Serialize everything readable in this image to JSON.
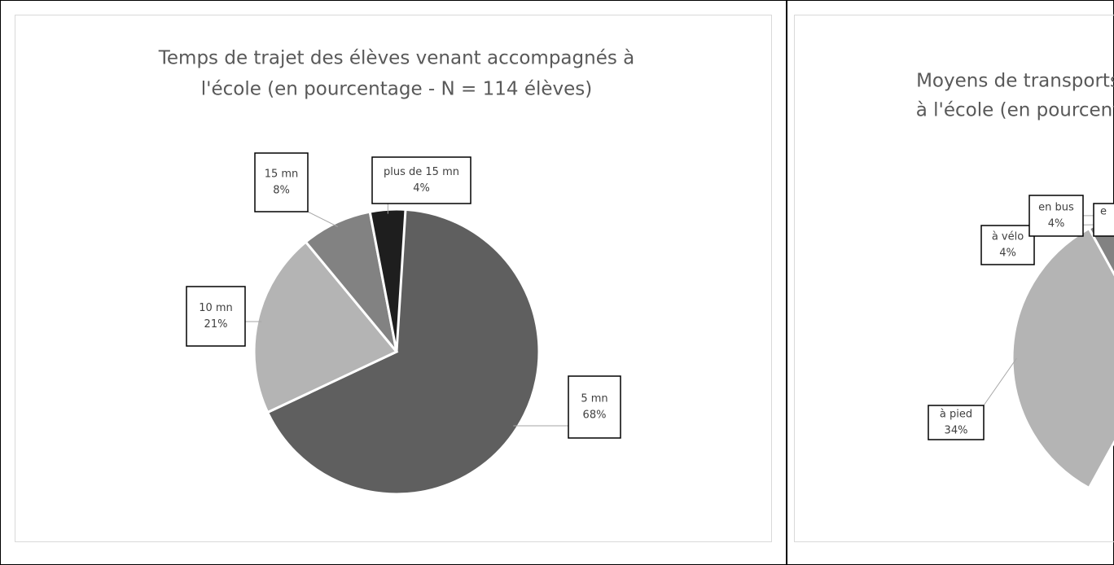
{
  "chart_data": [
    {
      "type": "pie",
      "title": [
        "Temps de trajet des élèves venant accompagnés à",
        "l'école (en pourcentage - N = 114 élèves)"
      ],
      "categories": [
        "5 mn",
        "10 mn",
        "15 mn",
        "plus de 15 mn"
      ],
      "values": [
        68,
        21,
        8,
        4
      ],
      "value_labels": [
        "68%",
        "21%",
        "8%",
        "4%"
      ],
      "colors": [
        "#5f5f5f",
        "#b4b4b4",
        "#828282",
        "#1e1e1e"
      ]
    },
    {
      "type": "pie",
      "title": [
        "Moyens de transports",
        "à l'école (en pourcent"
      ],
      "categories": [
        "à pied",
        "à vélo",
        "en bus"
      ],
      "values": [
        34,
        4,
        4
      ],
      "value_labels": [
        "34%",
        "4%",
        "4%"
      ],
      "colors": [
        "#b4b4b4",
        "#828282",
        "#1e1e1e"
      ],
      "annotations": [
        "e"
      ]
    }
  ]
}
